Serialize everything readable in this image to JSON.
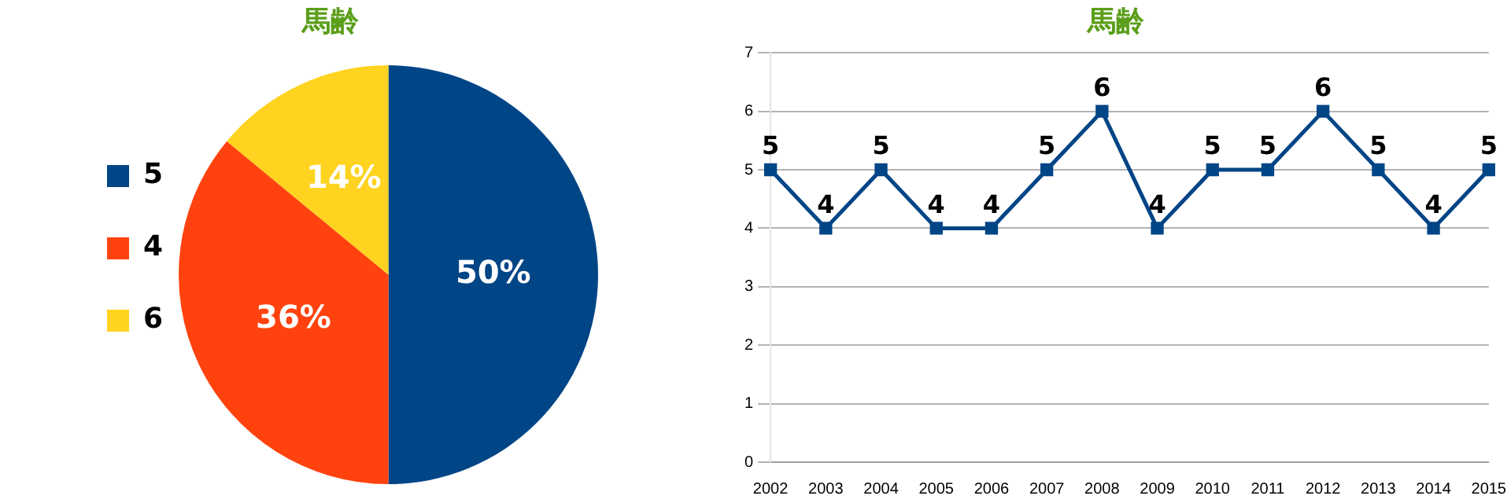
{
  "chart_data": [
    {
      "type": "pie",
      "title": "馬齢",
      "categories": [
        "5",
        "4",
        "6"
      ],
      "values": [
        50,
        36,
        14
      ],
      "colors": [
        "#004586",
        "#ff420e",
        "#ffd320"
      ],
      "value_labels": [
        "50%",
        "36%",
        "14%"
      ],
      "legend": "left"
    },
    {
      "type": "line",
      "title": "馬齢",
      "categories": [
        "2002",
        "2003",
        "2004",
        "2005",
        "2006",
        "2007",
        "2008",
        "2009",
        "2010",
        "2011",
        "2012",
        "2013",
        "2014",
        "2015"
      ],
      "series": [
        {
          "color": "#004586",
          "values": [
            5,
            4,
            5,
            4,
            4,
            5,
            6,
            4,
            5,
            5,
            6,
            5,
            4,
            5
          ]
        }
      ],
      "ylim": [
        0,
        7
      ],
      "yticks": [
        0,
        1,
        2,
        3,
        4,
        5,
        6,
        7
      ],
      "grid": "y",
      "marker": "square",
      "data_labels": true,
      "legend": false
    }
  ]
}
